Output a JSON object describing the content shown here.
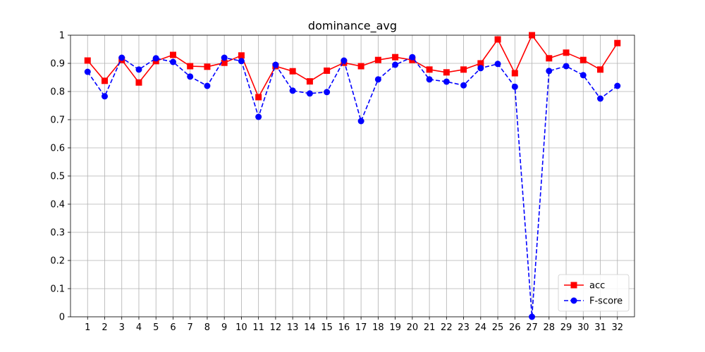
{
  "chart_data": {
    "type": "line",
    "title": "dominance_avg",
    "xlabel": "",
    "ylabel": "",
    "x": [
      1,
      2,
      3,
      4,
      5,
      6,
      7,
      8,
      9,
      10,
      11,
      12,
      13,
      14,
      15,
      16,
      17,
      18,
      19,
      20,
      21,
      22,
      23,
      24,
      25,
      26,
      27,
      28,
      29,
      30,
      31,
      32
    ],
    "xlim": [
      0,
      33
    ],
    "ylim": [
      0,
      1
    ],
    "yticks": [
      "0",
      "0.1",
      "0.2",
      "0.3",
      "0.4",
      "0.5",
      "0.6",
      "0.7",
      "0.8",
      "0.9",
      "1"
    ],
    "xticks": [
      "1",
      "2",
      "3",
      "4",
      "5",
      "6",
      "7",
      "8",
      "9",
      "10",
      "11",
      "12",
      "13",
      "14",
      "15",
      "16",
      "17",
      "18",
      "19",
      "20",
      "21",
      "22",
      "23",
      "24",
      "25",
      "26",
      "27",
      "28",
      "29",
      "30",
      "31",
      "32"
    ],
    "grid": true,
    "legend_position": "bottom-right",
    "series": [
      {
        "name": "acc",
        "color": "#ff0000",
        "line_style": "solid",
        "marker": "square",
        "values": [
          0.91,
          0.838,
          0.912,
          0.832,
          0.908,
          0.93,
          0.89,
          0.888,
          0.902,
          0.928,
          0.78,
          0.89,
          0.872,
          0.836,
          0.874,
          0.902,
          0.89,
          0.912,
          0.922,
          0.912,
          0.878,
          0.868,
          0.878,
          0.9,
          0.985,
          0.865,
          1.0,
          0.918,
          0.938,
          0.912,
          0.878,
          0.972
        ]
      },
      {
        "name": "F-score",
        "color": "#0000ff",
        "line_style": "dashed",
        "marker": "circle",
        "values": [
          0.87,
          0.783,
          0.92,
          0.878,
          0.918,
          0.905,
          0.853,
          0.82,
          0.92,
          0.908,
          0.71,
          0.895,
          0.803,
          0.793,
          0.798,
          0.91,
          0.695,
          0.843,
          0.895,
          0.922,
          0.843,
          0.835,
          0.822,
          0.883,
          0.898,
          0.817,
          0.0,
          0.873,
          0.89,
          0.858,
          0.775,
          0.82
        ]
      }
    ]
  }
}
